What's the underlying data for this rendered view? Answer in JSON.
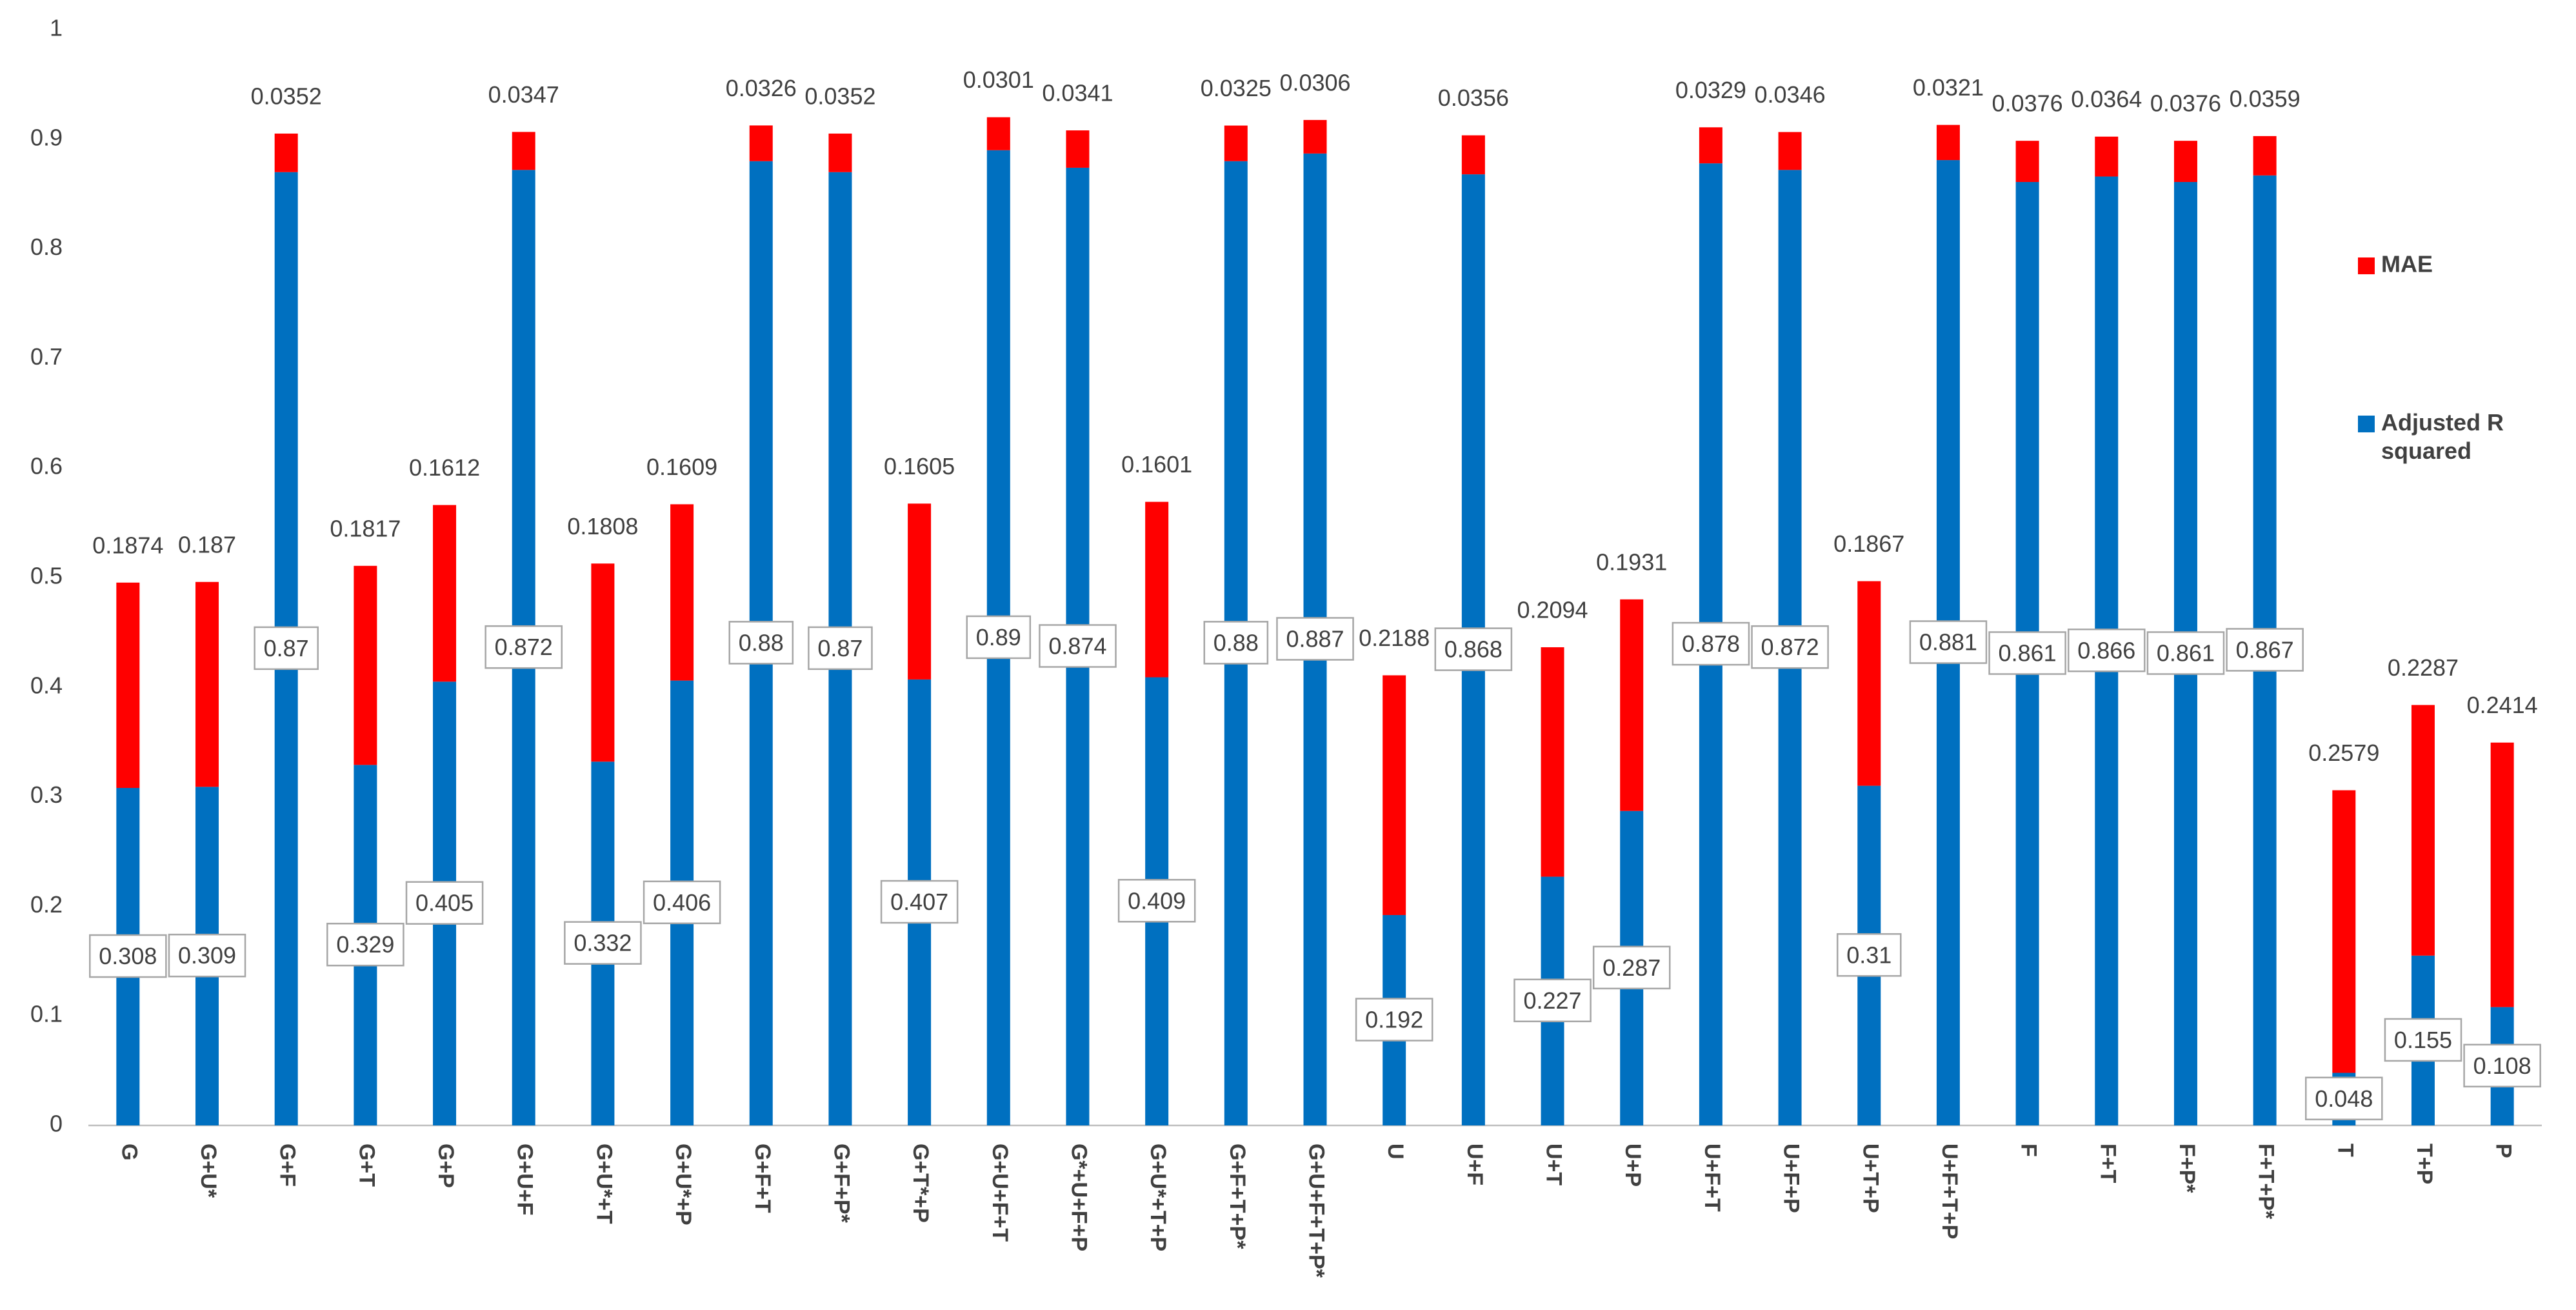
{
  "chart_data": {
    "type": "stacked_bar",
    "categories": [
      "G",
      "G+U*",
      "G+F",
      "G+T",
      "G+P",
      "G+U+F",
      "G+U*+T",
      "G+U*+P",
      "G+F+T",
      "G+F+P*",
      "G+T*+P",
      "G+U+F+T",
      "G*+U+F+P",
      "G+U*+T+P",
      "G+F+T+P*",
      "G+U+F+T+P*",
      "U",
      "U+F",
      "U+T",
      "U+P",
      "U+F+T",
      "U+F+P",
      "U+T+P",
      "U+F+T+P",
      "F",
      "F+T",
      "F+P*",
      "F+T+P*",
      "T",
      "T+P",
      "P"
    ],
    "series": [
      {
        "name": "Adjusted R squared",
        "color": "#0070c0",
        "values": [
          0.308,
          0.309,
          0.87,
          0.329,
          0.405,
          0.872,
          0.332,
          0.406,
          0.88,
          0.87,
          0.407,
          0.89,
          0.874,
          0.409,
          0.88,
          0.887,
          0.192,
          0.868,
          0.227,
          0.287,
          0.878,
          0.872,
          0.31,
          0.881,
          0.861,
          0.866,
          0.861,
          0.867,
          0.048,
          0.155,
          0.108
        ]
      },
      {
        "name": "MAE",
        "color": "#ff0000",
        "values": [
          0.1874,
          0.187,
          0.0352,
          0.1817,
          0.1612,
          0.0347,
          0.1808,
          0.1609,
          0.0326,
          0.0352,
          0.1605,
          0.0301,
          0.0341,
          0.1601,
          0.0325,
          0.0306,
          0.2188,
          0.0356,
          0.2094,
          0.1931,
          0.0329,
          0.0346,
          0.1867,
          0.0321,
          0.0376,
          0.0364,
          0.0376,
          0.0359,
          0.2579,
          0.2287,
          0.2414
        ]
      }
    ],
    "ylim": [
      0,
      1
    ],
    "yticks": [
      0,
      0.1,
      0.2,
      0.3,
      0.4,
      0.5,
      0.6,
      0.7,
      0.8,
      0.9,
      1
    ],
    "grid": false,
    "legend": "right"
  }
}
